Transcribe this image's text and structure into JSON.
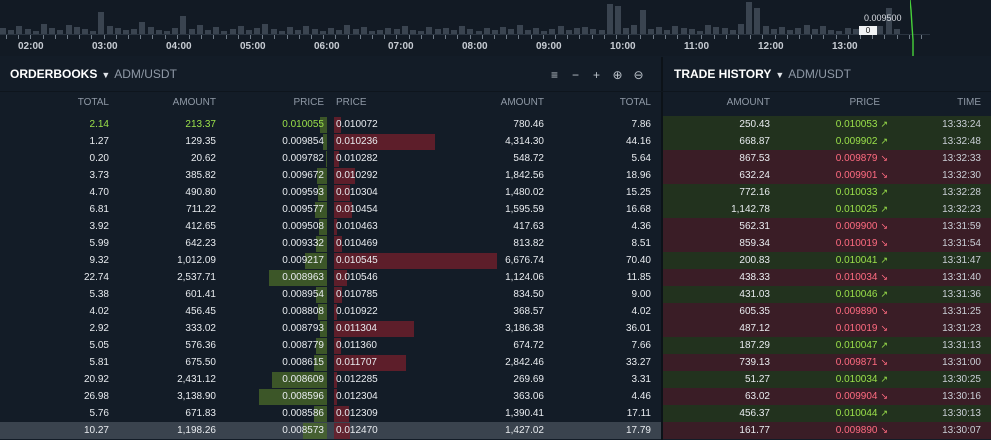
{
  "chart": {
    "time_labels": [
      "02:00",
      "03:00",
      "04:00",
      "05:00",
      "06:00",
      "07:00",
      "08:00",
      "09:00",
      "10:00",
      "11:00",
      "12:00",
      "13:00"
    ],
    "last_price_label": "0.009500",
    "price_badge": "0"
  },
  "orderbook": {
    "title": "ORDERBOOKS",
    "pair": "ADM/USDT",
    "headers": {
      "total": "TOTAL",
      "amount": "AMOUNT",
      "price": "PRICE"
    },
    "bids": [
      {
        "total": "2.14",
        "amount": "213.37",
        "price": "0.010055",
        "depth": 0.06
      },
      {
        "total": "1.27",
        "amount": "129.35",
        "price": "0.009854",
        "depth": 0.04
      },
      {
        "total": "0.20",
        "amount": "20.62",
        "price": "0.009782",
        "depth": 0.01
      },
      {
        "total": "3.73",
        "amount": "385.82",
        "price": "0.009672",
        "depth": 0.09
      },
      {
        "total": "4.70",
        "amount": "490.80",
        "price": "0.009593",
        "depth": 0.08
      },
      {
        "total": "6.81",
        "amount": "711.22",
        "price": "0.009577",
        "depth": 0.11
      },
      {
        "total": "3.92",
        "amount": "412.65",
        "price": "0.009508",
        "depth": 0.07
      },
      {
        "total": "5.99",
        "amount": "642.23",
        "price": "0.009332",
        "depth": 0.1
      },
      {
        "total": "9.32",
        "amount": "1,012.09",
        "price": "0.009217",
        "depth": 0.2
      },
      {
        "total": "22.74",
        "amount": "2,537.71",
        "price": "0.008963",
        "depth": 0.53
      },
      {
        "total": "5.38",
        "amount": "601.41",
        "price": "0.008954",
        "depth": 0.1
      },
      {
        "total": "4.02",
        "amount": "456.45",
        "price": "0.008808",
        "depth": 0.08
      },
      {
        "total": "2.92",
        "amount": "333.02",
        "price": "0.008793",
        "depth": 0.06
      },
      {
        "total": "5.05",
        "amount": "576.36",
        "price": "0.008779",
        "depth": 0.1
      },
      {
        "total": "5.81",
        "amount": "675.50",
        "price": "0.008615",
        "depth": 0.12
      },
      {
        "total": "20.92",
        "amount": "2,431.12",
        "price": "0.008609",
        "depth": 0.5
      },
      {
        "total": "26.98",
        "amount": "3,138.90",
        "price": "0.008596",
        "depth": 0.62
      },
      {
        "total": "5.76",
        "amount": "671.83",
        "price": "0.008586",
        "depth": 0.12
      },
      {
        "total": "10.27",
        "amount": "1,198.26",
        "price": "0.008573",
        "depth": 0.22
      }
    ],
    "asks": [
      {
        "price": "0.010072",
        "amount": "780.46",
        "total": "7.86",
        "depth": 0.04
      },
      {
        "price": "0.010236",
        "amount": "4,314.30",
        "total": "44.16",
        "depth": 0.62
      },
      {
        "price": "0.010282",
        "amount": "548.72",
        "total": "5.64",
        "depth": 0.03
      },
      {
        "price": "0.010292",
        "amount": "1,842.56",
        "total": "18.96",
        "depth": 0.13
      },
      {
        "price": "0.010304",
        "amount": "1,480.02",
        "total": "15.25",
        "depth": 0.1
      },
      {
        "price": "0.010454",
        "amount": "1,595.59",
        "total": "16.68",
        "depth": 0.11
      },
      {
        "price": "0.010463",
        "amount": "417.63",
        "total": "4.36",
        "depth": 0.02
      },
      {
        "price": "0.010469",
        "amount": "813.82",
        "total": "8.51",
        "depth": 0.05
      },
      {
        "price": "0.010545",
        "amount": "6,676.74",
        "total": "70.40",
        "depth": 1.0
      },
      {
        "price": "0.010546",
        "amount": "1,124.06",
        "total": "11.85",
        "depth": 0.08
      },
      {
        "price": "0.010785",
        "amount": "834.50",
        "total": "9.00",
        "depth": 0.05
      },
      {
        "price": "0.010922",
        "amount": "368.57",
        "total": "4.02",
        "depth": 0.02
      },
      {
        "price": "0.011304",
        "amount": "3,186.38",
        "total": "36.01",
        "depth": 0.49
      },
      {
        "price": "0.011360",
        "amount": "674.72",
        "total": "7.66",
        "depth": 0.04
      },
      {
        "price": "0.011707",
        "amount": "2,842.46",
        "total": "33.27",
        "depth": 0.44
      },
      {
        "price": "0.012285",
        "amount": "269.69",
        "total": "3.31",
        "depth": 0.02
      },
      {
        "price": "0.012304",
        "amount": "363.06",
        "total": "4.46",
        "depth": 0.02
      },
      {
        "price": "0.012309",
        "amount": "1,390.41",
        "total": "17.11",
        "depth": 0.09
      },
      {
        "price": "0.012470",
        "amount": "1,427.02",
        "total": "17.79",
        "depth": 0.1
      }
    ]
  },
  "trades": {
    "title": "TRADE HISTORY",
    "pair": "ADM/USDT",
    "headers": {
      "amount": "AMOUNT",
      "price": "PRICE",
      "time": "TIME"
    },
    "rows": [
      {
        "amount": "250.43",
        "price": "0.010053",
        "time": "13:33:24",
        "side": "buy"
      },
      {
        "amount": "668.87",
        "price": "0.009902",
        "time": "13:32:48",
        "side": "buy"
      },
      {
        "amount": "867.53",
        "price": "0.009879",
        "time": "13:32:33",
        "side": "sell"
      },
      {
        "amount": "632.24",
        "price": "0.009901",
        "time": "13:32:30",
        "side": "sell"
      },
      {
        "amount": "772.16",
        "price": "0.010033",
        "time": "13:32:28",
        "side": "buy"
      },
      {
        "amount": "1,142.78",
        "price": "0.010025",
        "time": "13:32:23",
        "side": "buy"
      },
      {
        "amount": "562.31",
        "price": "0.009900",
        "time": "13:31:59",
        "side": "sell"
      },
      {
        "amount": "859.34",
        "price": "0.010019",
        "time": "13:31:54",
        "side": "sell"
      },
      {
        "amount": "200.83",
        "price": "0.010041",
        "time": "13:31:47",
        "side": "buy"
      },
      {
        "amount": "438.33",
        "price": "0.010034",
        "time": "13:31:40",
        "side": "sell"
      },
      {
        "amount": "431.03",
        "price": "0.010046",
        "time": "13:31:36",
        "side": "buy"
      },
      {
        "amount": "605.35",
        "price": "0.009890",
        "time": "13:31:25",
        "side": "sell"
      },
      {
        "amount": "487.12",
        "price": "0.010019",
        "time": "13:31:23",
        "side": "sell"
      },
      {
        "amount": "187.29",
        "price": "0.010047",
        "time": "13:31:13",
        "side": "buy"
      },
      {
        "amount": "739.13",
        "price": "0.009871",
        "time": "13:31:00",
        "side": "sell"
      },
      {
        "amount": "51.27",
        "price": "0.010034",
        "time": "13:30:25",
        "side": "buy"
      },
      {
        "amount": "63.02",
        "price": "0.009904",
        "time": "13:30:16",
        "side": "sell"
      },
      {
        "amount": "456.37",
        "price": "0.010044",
        "time": "13:30:13",
        "side": "buy"
      },
      {
        "amount": "161.77",
        "price": "0.009890",
        "time": "13:30:07",
        "side": "sell"
      }
    ]
  },
  "colors": {
    "up": "#9be14a",
    "down": "#ff6b80",
    "bid_bar": "#4b6a2a",
    "ask_bar": "#6b1f2c"
  }
}
